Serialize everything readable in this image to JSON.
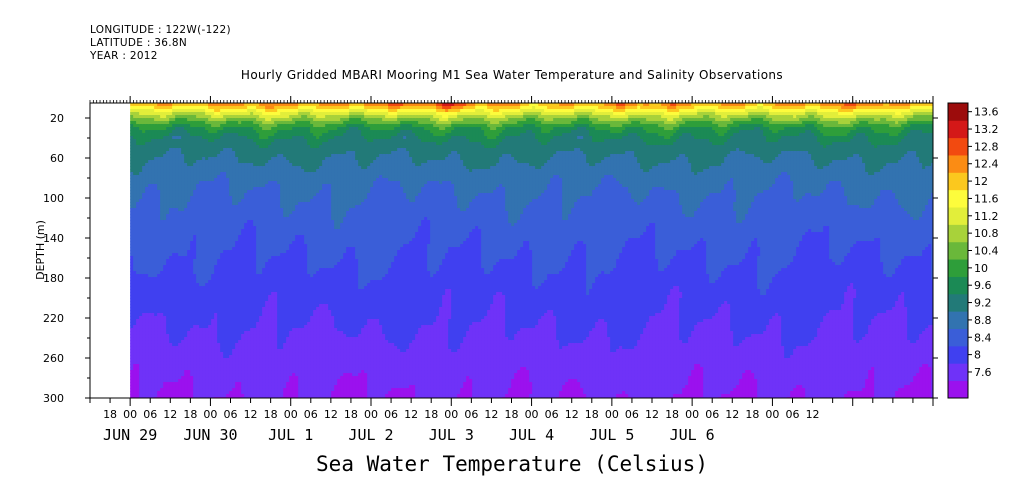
{
  "header": {
    "longitude": "LONGITUDE : 122W(-122)",
    "latitude": "LATITUDE : 36.8N",
    "year": "YEAR : 2012"
  },
  "title": "Hourly Gridded MBARI Mooring M1 Sea Water Temperature and Salinity Observations",
  "bottom_title": "Sea Water Temperature (Celsius)",
  "chart_data": {
    "type": "heatmap",
    "title": "Hourly Gridded MBARI Mooring M1 Sea Water Temperature and Salinity Observations",
    "ylabel": "DEPTH (m)",
    "x_axis": {
      "hour_ticks": [
        "18",
        "00",
        "06",
        "12",
        "18",
        "00",
        "06",
        "12",
        "18",
        "00",
        "06",
        "12",
        "18",
        "00",
        "06",
        "12",
        "18",
        "00",
        "06",
        "12",
        "18",
        "00",
        "06",
        "12",
        "18",
        "00",
        "06",
        "12",
        "18",
        "00",
        "06",
        "12",
        "18",
        "00",
        "06",
        "12"
      ],
      "date_labels": [
        "JUN 29",
        "JUN 30",
        "JUL 1",
        "JUL 2",
        "JUL 3",
        "JUL 4",
        "JUL 5",
        "JUL 6"
      ],
      "range_hours": [
        -36,
        216
      ],
      "data_start_hour": -24
    },
    "y_axis": {
      "ticks": [
        20,
        60,
        100,
        140,
        180,
        220,
        260,
        300
      ],
      "range": [
        300,
        5
      ],
      "inverted": true
    },
    "colorbar": {
      "levels": [
        7.6,
        8,
        8.4,
        8.8,
        9.2,
        9.6,
        10,
        10.4,
        10.8,
        11.2,
        11.6,
        12,
        12.4,
        12.8,
        13.2,
        13.6
      ],
      "colors": [
        "#9b11ee",
        "#6f32f8",
        "#4040f0",
        "#3a5ed8",
        "#3273b0",
        "#227a78",
        "#1b8a55",
        "#2e9e3a",
        "#6ab83a",
        "#a8d23a",
        "#e2ee3a",
        "#fdfc3c",
        "#fbc81e",
        "#fb8c14",
        "#f24a10",
        "#d41818",
        "#9c0c0c"
      ],
      "tick_labels": [
        "13.6",
        "13.2",
        "12.8",
        "12.4",
        "12",
        "11.6",
        "11.2",
        "10.8",
        "10.4",
        "10",
        "9.6",
        "9.2",
        "8.8",
        "8.4",
        "8",
        "7.6"
      ]
    },
    "depth_profile": [
      {
        "depth": 5,
        "temp": 12.6
      },
      {
        "depth": 10,
        "temp": 12.0
      },
      {
        "depth": 15,
        "temp": 11.4
      },
      {
        "depth": 22,
        "temp": 10.7
      },
      {
        "depth": 30,
        "temp": 10.0
      },
      {
        "depth": 40,
        "temp": 9.6
      },
      {
        "depth": 55,
        "temp": 9.3
      },
      {
        "depth": 75,
        "temp": 9.0
      },
      {
        "depth": 95,
        "temp": 8.8
      },
      {
        "depth": 125,
        "temp": 8.6
      },
      {
        "depth": 160,
        "temp": 8.4
      },
      {
        "depth": 200,
        "temp": 8.15
      },
      {
        "depth": 240,
        "temp": 7.95
      },
      {
        "depth": 270,
        "temp": 7.75
      },
      {
        "depth": 300,
        "temp": 7.6
      }
    ],
    "surface_warm_events": [
      {
        "hour": 48,
        "peak": 13.4
      },
      {
        "hour": 58,
        "peak": 13.3
      },
      {
        "hour": 72,
        "peak": 13.6
      },
      {
        "hour": 168,
        "peak": 12.6
      },
      {
        "hour": 198,
        "peak": 13.2
      }
    ],
    "grid": false,
    "legend": "right colorbar"
  }
}
